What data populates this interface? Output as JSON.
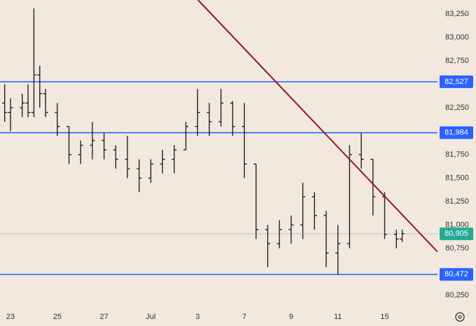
{
  "chart_data": {
    "type": "ohlc",
    "x": [
      -0.25,
      0,
      0.5,
      0.75,
      1,
      1.25,
      1.5,
      2,
      2.5,
      3,
      3.5,
      4,
      4.5,
      5,
      5.5,
      6,
      6.5,
      7,
      7.5,
      8,
      8.5,
      9,
      9.5,
      10,
      10.5,
      11,
      11.5,
      12,
      12.5,
      13,
      13.5,
      14,
      14.5,
      15,
      15.5,
      16,
      16.5,
      16.75
    ],
    "open": [
      82300,
      82200,
      82250,
      82300,
      82200,
      82600,
      82400,
      82200,
      82050,
      81750,
      81850,
      81900,
      81800,
      81700,
      81600,
      81500,
      81650,
      81700,
      81800,
      82050,
      82200,
      82100,
      82300,
      82050,
      81650,
      80950,
      80800,
      80950,
      81000,
      81300,
      81100,
      80700,
      80800,
      81750,
      81700,
      81300,
      80900,
      80850
    ],
    "high": [
      82500,
      82350,
      82400,
      82500,
      83310,
      82700,
      82450,
      82300,
      82050,
      81900,
      82100,
      81980,
      81850,
      81950,
      81700,
      81700,
      81800,
      81850,
      82100,
      82450,
      82300,
      82450,
      82320,
      82300,
      81650,
      81000,
      81050,
      81100,
      81450,
      81350,
      81150,
      81000,
      81850,
      81980,
      81700,
      81350,
      80950,
      80950
    ],
    "low": [
      82100,
      82000,
      82150,
      82150,
      82150,
      82250,
      82150,
      81950,
      81650,
      81650,
      81700,
      81700,
      81600,
      81500,
      81350,
      81450,
      81550,
      81550,
      81800,
      81950,
      81950,
      82050,
      81950,
      81500,
      80850,
      80550,
      80750,
      80800,
      80850,
      80950,
      80550,
      80472,
      80750,
      81600,
      81100,
      80850,
      80750,
      80820
    ],
    "close": [
      82200,
      82250,
      82300,
      82200,
      82600,
      82400,
      82200,
      82050,
      81750,
      81850,
      81900,
      81800,
      81700,
      81600,
      81500,
      81650,
      81700,
      81800,
      82050,
      82200,
      82100,
      82300,
      82050,
      81650,
      80950,
      80800,
      80950,
      81000,
      81300,
      81100,
      80700,
      80800,
      81750,
      81700,
      81300,
      80900,
      80850,
      80905
    ],
    "color": "#222222",
    "xlim": [
      -0.45,
      18.26
    ],
    "xticks": [
      {
        "value": 0,
        "label": "23"
      },
      {
        "value": 2,
        "label": "25"
      },
      {
        "value": 4,
        "label": "27"
      },
      {
        "value": 6,
        "label": "Jul"
      },
      {
        "value": 8,
        "label": "3"
      },
      {
        "value": 10,
        "label": "7"
      },
      {
        "value": 12,
        "label": "9"
      },
      {
        "value": 14,
        "label": "11"
      },
      {
        "value": 16,
        "label": "15"
      }
    ],
    "ylim": [
      80116,
      83399
    ],
    "yticks": [
      {
        "value": 80250,
        "label": "80,250"
      },
      {
        "value": 80500,
        "label": "80,500"
      },
      {
        "value": 80750,
        "label": "80,750"
      },
      {
        "value": 81000,
        "label": "81,000"
      },
      {
        "value": 81250,
        "label": "81,250"
      },
      {
        "value": 81500,
        "label": "81,500"
      },
      {
        "value": 81750,
        "label": "81,750"
      },
      {
        "value": 82000,
        "label": "82,000"
      },
      {
        "value": 82250,
        "label": "82,250"
      },
      {
        "value": 82500,
        "label": "82,500"
      },
      {
        "value": 82750,
        "label": "82,750"
      },
      {
        "value": 83000,
        "label": "83,000"
      },
      {
        "value": 83250,
        "label": "83,250"
      }
    ],
    "hlines": [
      {
        "value": 82527,
        "label": "82,527",
        "color": "#2962ff",
        "style": "solid"
      },
      {
        "value": 81984,
        "label": "81,984",
        "color": "#2962ff",
        "style": "solid"
      },
      {
        "value": 80472,
        "label": "80,472",
        "color": "#2962ff",
        "style": "solid"
      },
      {
        "value": 80905,
        "label": "80,905",
        "color": "#22ab94",
        "style": "dotted"
      }
    ],
    "trendline": {
      "x": [
        8.02,
        18.26
      ],
      "y": [
        83399,
        80713
      ],
      "color": "#8b1a2b"
    }
  }
}
